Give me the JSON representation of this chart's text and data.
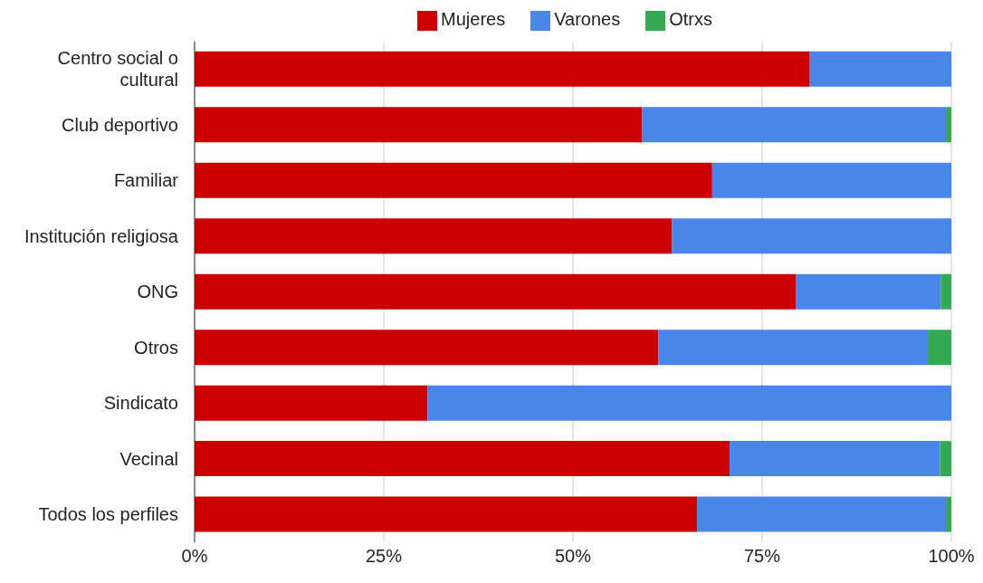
{
  "chart_data": {
    "type": "bar",
    "orientation": "horizontal",
    "stacked": true,
    "categories": [
      "Centro social o cultural",
      "Club deportivo",
      "Familiar",
      "Institución religiosa",
      "ONG",
      "Otros",
      "Sindicato",
      "Vecinal",
      "Todos los perfiles"
    ],
    "series": [
      {
        "name": "Mujeres",
        "color": "#cc0000",
        "values": [
          81.3,
          59.1,
          68.4,
          63.1,
          79.5,
          61.3,
          30.8,
          70.7,
          66.4
        ]
      },
      {
        "name": "Varones",
        "color": "#4a86e8",
        "values": [
          18.7,
          40.3,
          31.6,
          36.9,
          19.1,
          35.6,
          69.2,
          27.8,
          33.0
        ]
      },
      {
        "name": "Otrxs",
        "color": "#34a853",
        "values": [
          0,
          0.6,
          0,
          0,
          1.4,
          3.1,
          0,
          1.5,
          0.6
        ]
      }
    ],
    "xlim": [
      0,
      100
    ],
    "xticks": [
      {
        "value": 0,
        "label": "0%"
      },
      {
        "value": 25,
        "label": "25%"
      },
      {
        "value": 50,
        "label": "50%"
      },
      {
        "value": 75,
        "label": "75%"
      },
      {
        "value": 100,
        "label": "100%"
      }
    ],
    "grid": "x",
    "legend": "top"
  }
}
